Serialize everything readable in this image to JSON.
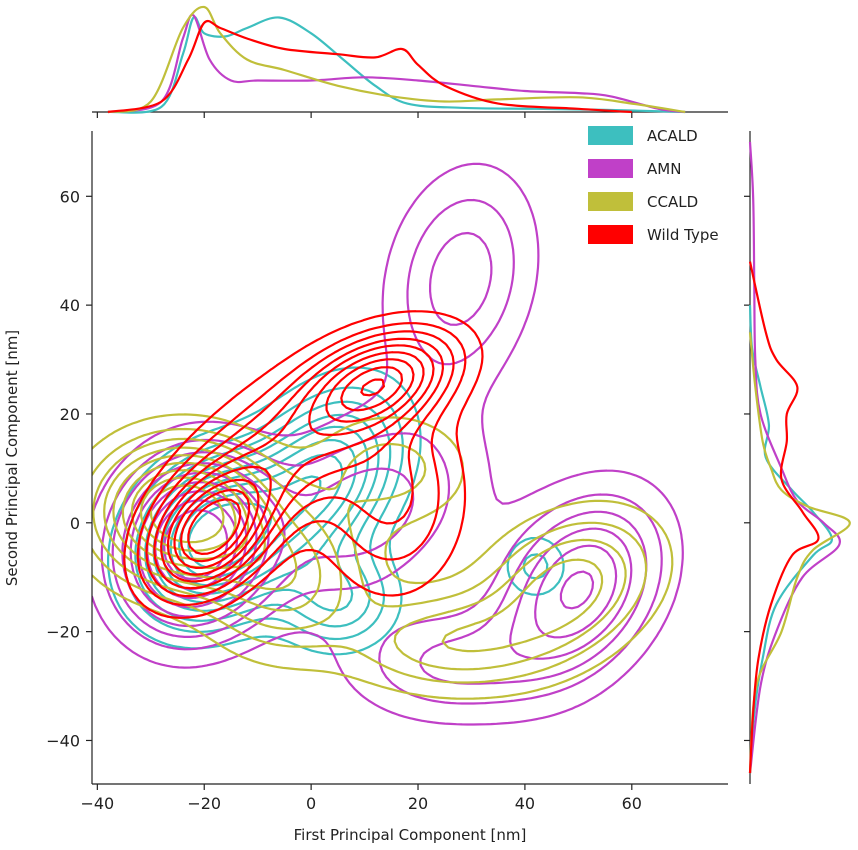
{
  "chart_data": {
    "type": "contour",
    "xlabel": "First Principal Component [nm]",
    "ylabel": "Second Principal Component [nm]",
    "xlim": [
      -41,
      78
    ],
    "ylim": [
      -48,
      72
    ],
    "xticks": [
      -40,
      -20,
      0,
      20,
      40,
      60
    ],
    "yticks": [
      -40,
      -20,
      0,
      20,
      40,
      60
    ],
    "xtick_labels": [
      "−40",
      "−20",
      "0",
      "20",
      "40",
      "60"
    ],
    "ytick_labels": [
      "−40",
      "−20",
      "0",
      "20",
      "40",
      "60"
    ],
    "grid": false,
    "legend_position": "top-right",
    "series": [
      {
        "name": "ACALD",
        "color": "#3dbfbf",
        "modes": [
          {
            "cx": -18,
            "cy": -3,
            "sx": 9,
            "sy": 9,
            "r": 0.2,
            "w": 1.0
          },
          {
            "cx": 2,
            "cy": 8,
            "sx": 9,
            "sy": 10,
            "r": 0.35,
            "w": 0.7
          },
          {
            "cx": 5,
            "cy": -14,
            "sx": 7,
            "sy": 6,
            "r": 0.0,
            "w": 0.35
          },
          {
            "cx": 42,
            "cy": -8,
            "sx": 4,
            "sy": 4,
            "r": 0.0,
            "w": 0.2
          }
        ],
        "x_marginal": [
          [
            -38,
            0
          ],
          [
            -28,
            0.05
          ],
          [
            -24,
            0.55
          ],
          [
            -22,
            0.9
          ],
          [
            -20,
            0.75
          ],
          [
            -16,
            0.72
          ],
          [
            -12,
            0.8
          ],
          [
            -6,
            0.9
          ],
          [
            0,
            0.75
          ],
          [
            6,
            0.5
          ],
          [
            12,
            0.25
          ],
          [
            18,
            0.08
          ],
          [
            28,
            0.04
          ],
          [
            42,
            0.03
          ],
          [
            55,
            0.02
          ],
          [
            70,
            0
          ]
        ],
        "y_marginal": [
          [
            -46,
            0
          ],
          [
            -35,
            0.04
          ],
          [
            -25,
            0.12
          ],
          [
            -15,
            0.25
          ],
          [
            -6,
            0.6
          ],
          [
            -3,
            0.78
          ],
          [
            2,
            0.6
          ],
          [
            6,
            0.4
          ],
          [
            12,
            0.15
          ],
          [
            18,
            0.18
          ],
          [
            25,
            0.1
          ],
          [
            32,
            0.02
          ],
          [
            40,
            0
          ]
        ]
      },
      {
        "name": "AMN",
        "color": "#c040c8",
        "modes": [
          {
            "cx": -22,
            "cy": -4,
            "sx": 9,
            "sy": 10,
            "r": 0.1,
            "w": 1.0
          },
          {
            "cx": 50,
            "cy": -12,
            "sx": 10,
            "sy": 11,
            "r": 0.3,
            "w": 0.55
          },
          {
            "cx": 28,
            "cy": 45,
            "sx": 9,
            "sy": 13,
            "r": 0.2,
            "w": 0.3
          },
          {
            "cx": 10,
            "cy": 2,
            "sx": 14,
            "sy": 12,
            "r": 0.3,
            "w": 0.3
          },
          {
            "cx": 25,
            "cy": -26,
            "sx": 12,
            "sy": 7,
            "r": 0.0,
            "w": 0.25
          }
        ],
        "x_marginal": [
          [
            -38,
            0
          ],
          [
            -28,
            0.1
          ],
          [
            -24,
            0.7
          ],
          [
            -22,
            0.92
          ],
          [
            -19,
            0.5
          ],
          [
            -15,
            0.3
          ],
          [
            -10,
            0.3
          ],
          [
            0,
            0.3
          ],
          [
            10,
            0.33
          ],
          [
            20,
            0.3
          ],
          [
            30,
            0.25
          ],
          [
            40,
            0.2
          ],
          [
            50,
            0.18
          ],
          [
            56,
            0.15
          ],
          [
            65,
            0.03
          ],
          [
            70,
            0
          ]
        ],
        "y_marginal": [
          [
            -46,
            0
          ],
          [
            -30,
            0.1
          ],
          [
            -20,
            0.25
          ],
          [
            -10,
            0.5
          ],
          [
            -4,
            0.85
          ],
          [
            0,
            0.7
          ],
          [
            4,
            0.45
          ],
          [
            10,
            0.3
          ],
          [
            20,
            0.1
          ],
          [
            30,
            0.05
          ],
          [
            45,
            0.04
          ],
          [
            60,
            0.03
          ],
          [
            70,
            0
          ]
        ]
      },
      {
        "name": "CCALD",
        "color": "#c0bf3a",
        "modes": [
          {
            "cx": -24,
            "cy": 2,
            "sx": 10,
            "sy": 8,
            "r": 0.0,
            "w": 1.0
          },
          {
            "cx": -5,
            "cy": -10,
            "sx": 10,
            "sy": 9,
            "r": 0.0,
            "w": 0.4
          },
          {
            "cx": 48,
            "cy": -12,
            "sx": 11,
            "sy": 9,
            "r": 0.3,
            "w": 0.4
          },
          {
            "cx": 25,
            "cy": -22,
            "sx": 12,
            "sy": 6,
            "r": 0.0,
            "w": 0.3
          },
          {
            "cx": 15,
            "cy": 10,
            "sx": 10,
            "sy": 7,
            "r": 0.0,
            "w": 0.2
          }
        ],
        "x_marginal": [
          [
            -38,
            0
          ],
          [
            -30,
            0.1
          ],
          [
            -24,
            0.8
          ],
          [
            -20,
            1.0
          ],
          [
            -17,
            0.75
          ],
          [
            -12,
            0.5
          ],
          [
            -5,
            0.4
          ],
          [
            5,
            0.25
          ],
          [
            15,
            0.15
          ],
          [
            25,
            0.1
          ],
          [
            35,
            0.12
          ],
          [
            50,
            0.14
          ],
          [
            60,
            0.08
          ],
          [
            70,
            0
          ]
        ],
        "y_marginal": [
          [
            -46,
            0
          ],
          [
            -30,
            0.06
          ],
          [
            -20,
            0.3
          ],
          [
            -10,
            0.45
          ],
          [
            -5,
            0.6
          ],
          [
            0,
            0.95
          ],
          [
            3,
            0.55
          ],
          [
            6,
            0.3
          ],
          [
            10,
            0.2
          ],
          [
            15,
            0.12
          ],
          [
            25,
            0.05
          ],
          [
            35,
            0
          ]
        ]
      },
      {
        "name": "Wild Type",
        "color": "#ff0000",
        "modes": [
          {
            "cx": -19,
            "cy": -2,
            "sx": 7,
            "sy": 7,
            "r": 0.35,
            "w": 1.0
          },
          {
            "cx": 13,
            "cy": 26,
            "sx": 9,
            "sy": 6,
            "r": 0.4,
            "w": 0.8
          },
          {
            "cx": -6,
            "cy": 12,
            "sx": 12,
            "sy": 10,
            "r": 0.5,
            "w": 0.45
          },
          {
            "cx": 15,
            "cy": 5,
            "sx": 9,
            "sy": 12,
            "r": 0.0,
            "w": 0.3
          }
        ],
        "x_marginal": [
          [
            -38,
            0
          ],
          [
            -28,
            0.1
          ],
          [
            -23,
            0.5
          ],
          [
            -20,
            0.85
          ],
          [
            -17,
            0.8
          ],
          [
            -12,
            0.7
          ],
          [
            -5,
            0.6
          ],
          [
            5,
            0.55
          ],
          [
            12,
            0.52
          ],
          [
            17,
            0.6
          ],
          [
            20,
            0.45
          ],
          [
            25,
            0.25
          ],
          [
            35,
            0.08
          ],
          [
            50,
            0.03
          ],
          [
            60,
            0
          ]
        ],
        "y_marginal": [
          [
            -46,
            0
          ],
          [
            -35,
            0.03
          ],
          [
            -25,
            0.08
          ],
          [
            -15,
            0.2
          ],
          [
            -6,
            0.4
          ],
          [
            -3,
            0.65
          ],
          [
            2,
            0.5
          ],
          [
            8,
            0.3
          ],
          [
            15,
            0.35
          ],
          [
            20,
            0.35
          ],
          [
            25,
            0.45
          ],
          [
            30,
            0.25
          ],
          [
            35,
            0.15
          ],
          [
            48,
            0
          ]
        ]
      }
    ]
  }
}
